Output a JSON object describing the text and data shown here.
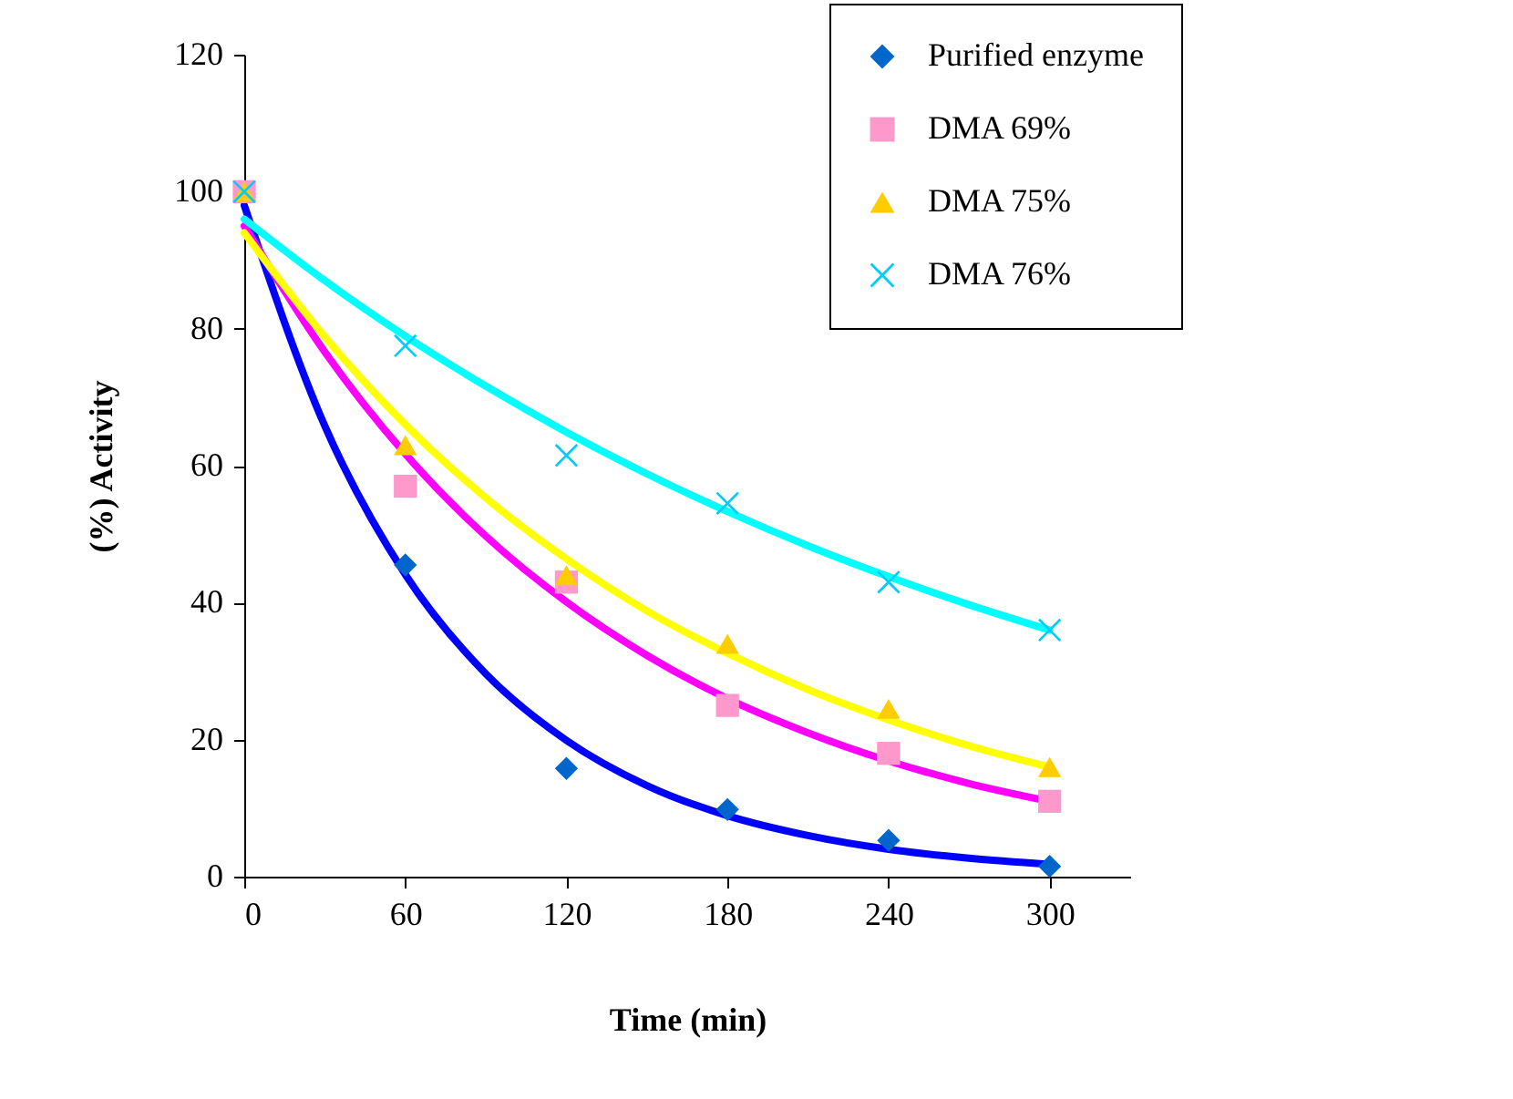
{
  "chart_data": {
    "type": "scatter",
    "xlabel": "Time (min)",
    "ylabel": "(%) Activity",
    "xlim": [
      0,
      330
    ],
    "xticks": [
      0,
      60,
      120,
      180,
      240,
      300
    ],
    "ylim": [
      0,
      120
    ],
    "yticks": [
      0,
      20,
      40,
      60,
      80,
      100,
      120
    ],
    "grid": false,
    "legend": "top right",
    "x": [
      0,
      60,
      120,
      180,
      240,
      300
    ],
    "series": [
      {
        "name": "Purified enzyme",
        "marker": "diamond",
        "color": "#0066cc",
        "values": [
          null,
          45.5,
          15.8,
          9.8,
          5.3,
          1.5
        ]
      },
      {
        "name": "DMA 69%",
        "marker": "square",
        "color": "#ff99cc",
        "values": [
          100,
          57,
          43,
          25,
          18,
          11
        ]
      },
      {
        "name": "DMA 75%",
        "marker": "triangle",
        "color": "#ffcc00",
        "values": [
          100,
          63,
          44,
          34,
          24.5,
          16
        ]
      },
      {
        "name": "DMA 76%",
        "marker": "cross",
        "color": "#00ccff",
        "values": [
          100,
          77.5,
          61.5,
          54.5,
          43,
          36
        ]
      },
      {
        "type": "line",
        "color": "#0000ff",
        "x": [
          0,
          30,
          60,
          90,
          120,
          150,
          180,
          210,
          240,
          270,
          300
        ],
        "values": [
          98,
          65.8,
          44.1,
          29.6,
          19.9,
          13.3,
          8.9,
          6.0,
          4.0,
          2.7,
          1.8
        ]
      },
      {
        "type": "line",
        "color": "#ff00ff",
        "x": [
          0,
          30,
          60,
          90,
          120,
          150,
          180,
          210,
          240,
          270,
          300
        ],
        "values": [
          95,
          76.6,
          61.7,
          49.7,
          40.1,
          32.3,
          26.0,
          21.0,
          16.9,
          13.6,
          11.0
        ]
      },
      {
        "type": "line",
        "color": "#ffff00",
        "x": [
          0,
          30,
          60,
          90,
          120,
          150,
          180,
          210,
          240,
          270,
          300
        ],
        "values": [
          94,
          78.8,
          66.0,
          55.3,
          46.4,
          38.8,
          32.6,
          27.3,
          22.9,
          19.1,
          16.0
        ]
      },
      {
        "type": "line",
        "color": "#00ffff",
        "x": [
          0,
          30,
          60,
          90,
          120,
          150,
          180,
          210,
          240,
          270,
          300
        ],
        "values": [
          96,
          87.0,
          78.9,
          71.6,
          64.9,
          58.8,
          53.3,
          48.3,
          43.8,
          39.7,
          36.0
        ]
      }
    ]
  }
}
